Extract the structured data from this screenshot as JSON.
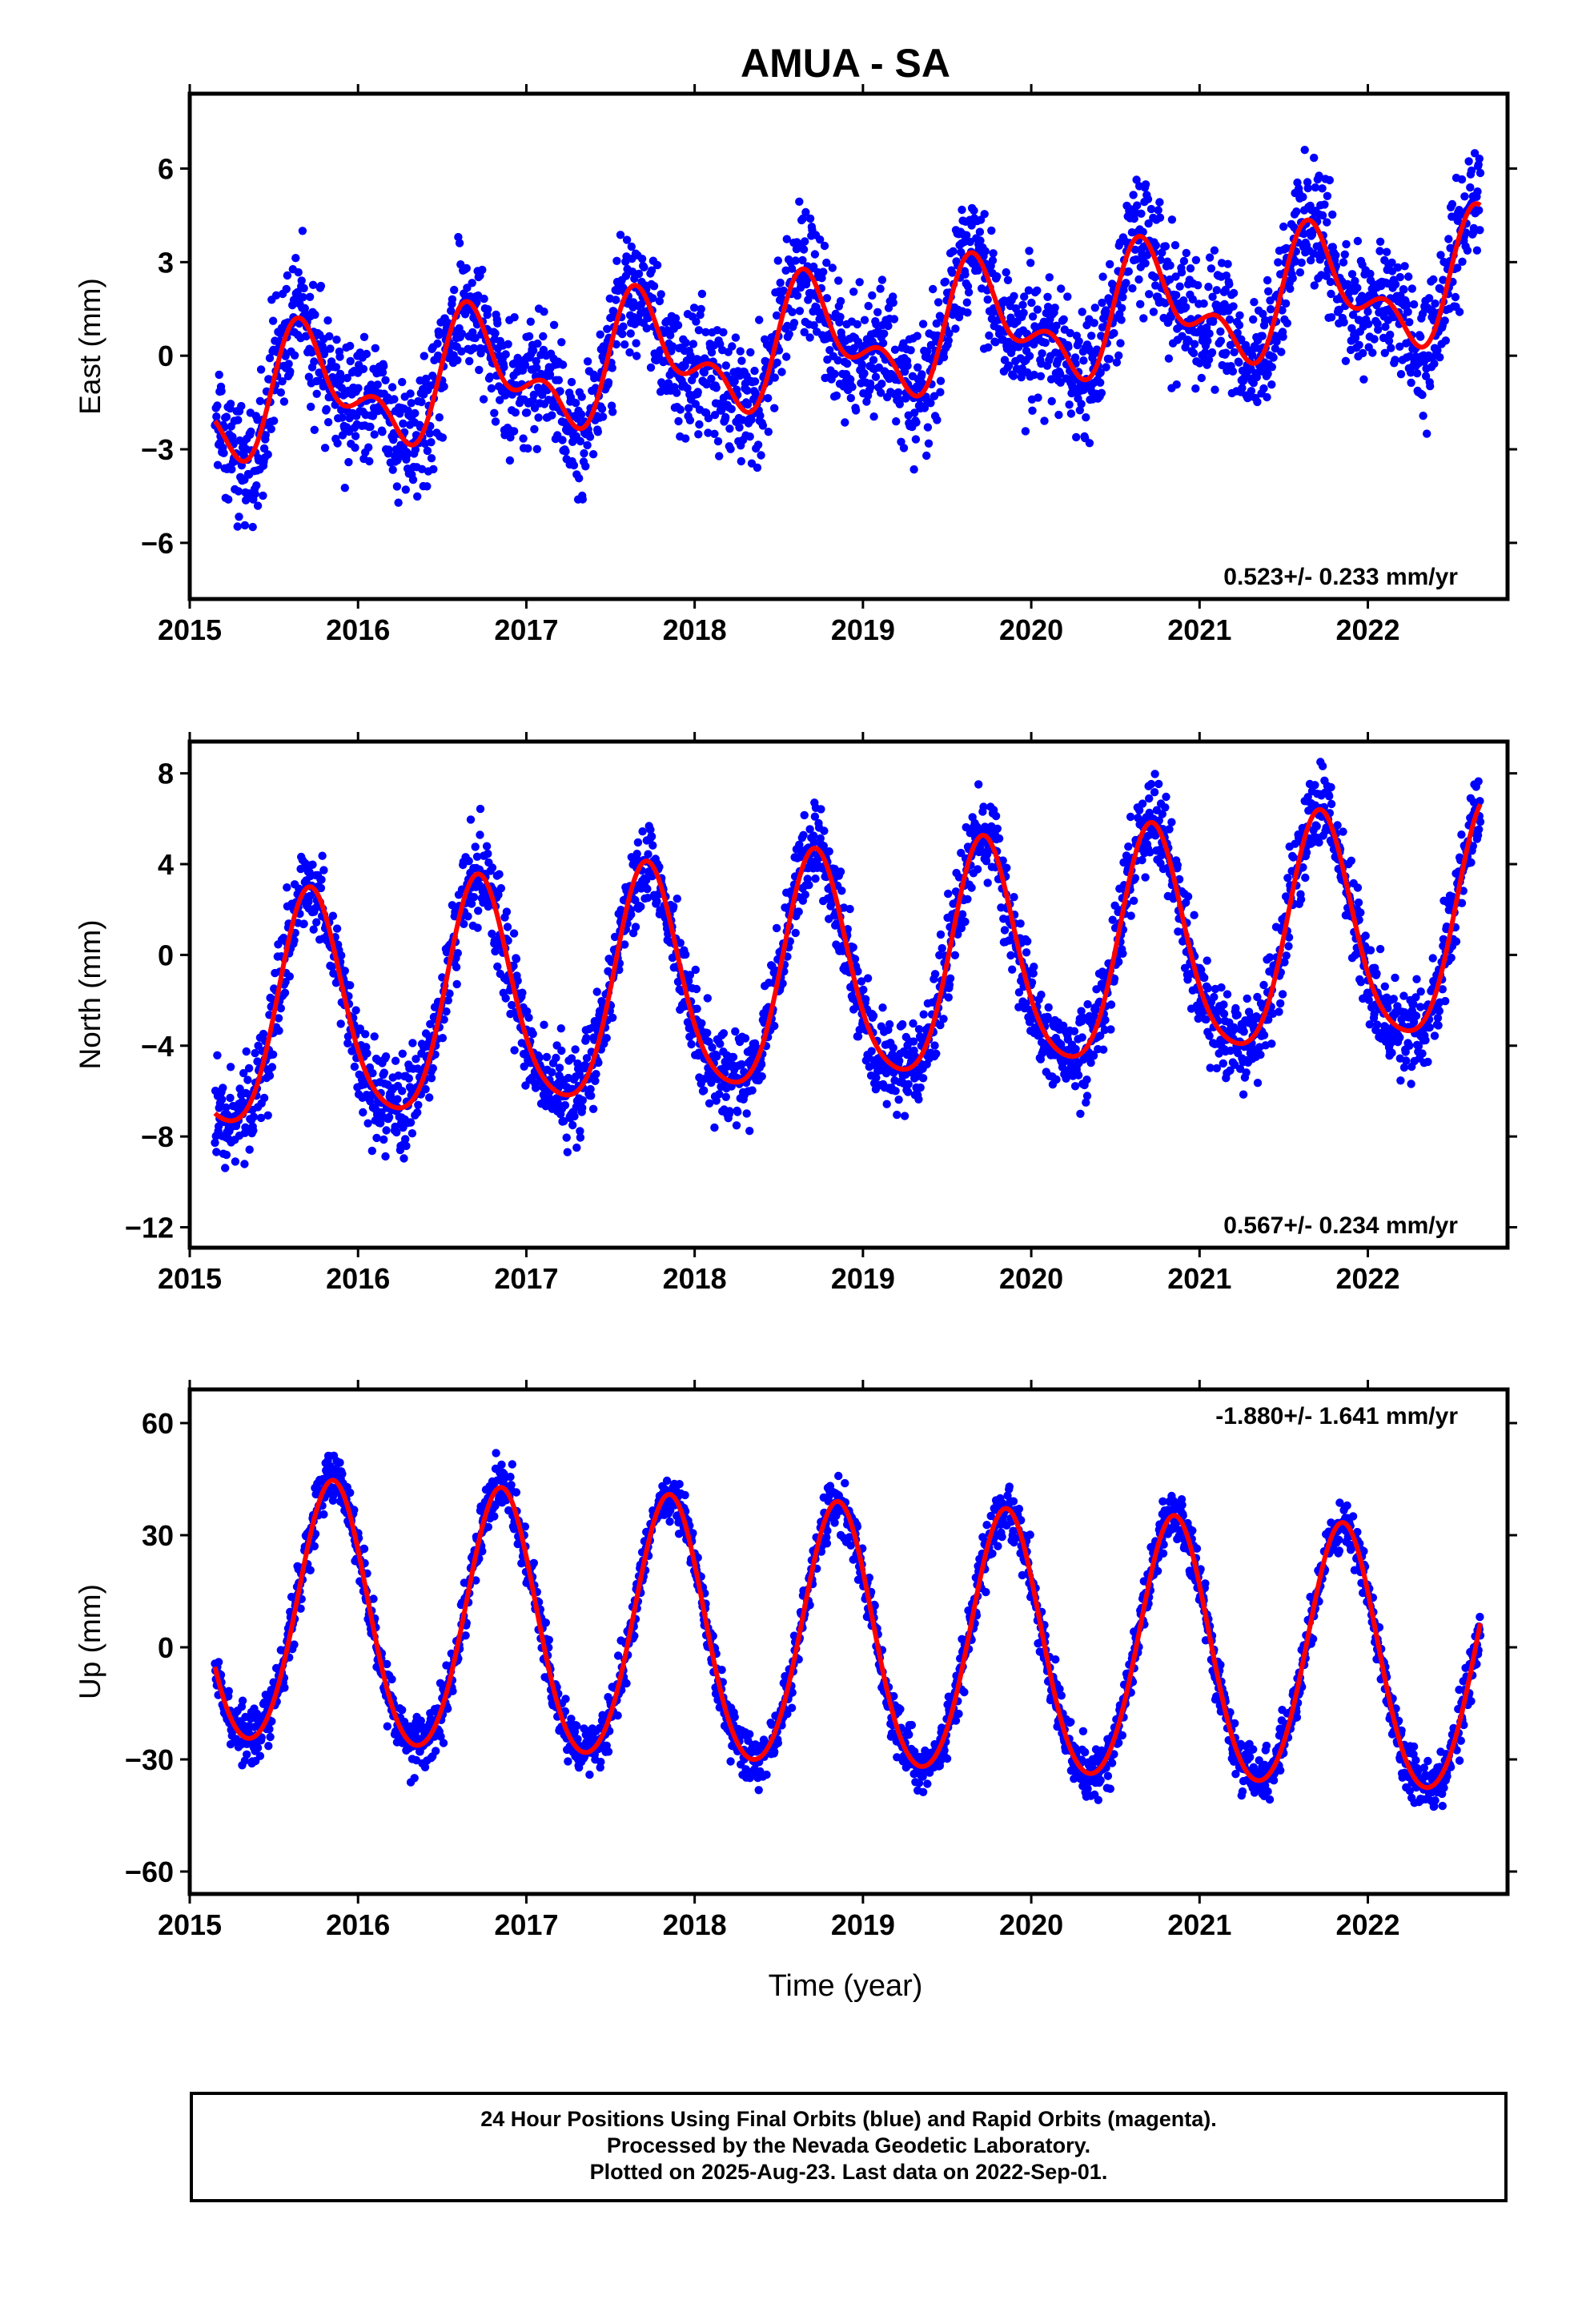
{
  "title": "AMUA - SA",
  "xlabel": "Time (year)",
  "colors": {
    "final_orbits": "#0000ff",
    "model_fit": "#ff0000",
    "frame": "#000000"
  },
  "footer": {
    "line1": "24 Hour Positions Using Final Orbits (blue) and Rapid Orbits (magenta).",
    "line2": "Processed by the Nevada Geodetic Laboratory.",
    "line3": "Plotted on 2025-Aug-23. Last data on 2022-Sep-01."
  },
  "chart_data": [
    {
      "type": "scatter",
      "component": "east",
      "ylabel": "East (mm)",
      "rate_label": "0.523+/- 0.233 mm/yr",
      "xlim": [
        2015.0,
        2022.83
      ],
      "ylim": [
        -7.8,
        8.4
      ],
      "xticks": [
        2015,
        2016,
        2017,
        2018,
        2019,
        2020,
        2021,
        2022
      ],
      "yticks": [
        -6,
        -3,
        0,
        3,
        6
      ],
      "yticklabels": [
        "−6",
        "−3",
        "0",
        "3",
        "6"
      ],
      "data_range": [
        2015.15,
        2022.67
      ],
      "model": {
        "rate": 0.523,
        "offset": -1.5,
        "t0": 2015.15,
        "annual_amp": 1.6,
        "annual_peak": 2015.7,
        "semiannual_amp": 1.0,
        "semiannual_peak": 2015.62
      },
      "scatter_sigma": 1.3,
      "series": [
        {
          "name": "Final Orbits",
          "color": "#0000ff",
          "marker": "point"
        },
        {
          "name": "Model",
          "color": "#ff0000",
          "marker": "line"
        }
      ]
    },
    {
      "type": "scatter",
      "component": "north",
      "ylabel": "North (mm)",
      "rate_label": "0.567+/- 0.234 mm/yr",
      "xlim": [
        2015.0,
        2022.83
      ],
      "ylim": [
        -12.9,
        9.4
      ],
      "xticks": [
        2015,
        2016,
        2017,
        2018,
        2019,
        2020,
        2021,
        2022
      ],
      "yticks": [
        -12,
        -8,
        -4,
        0,
        4,
        8
      ],
      "yticklabels": [
        "−12",
        "−8",
        "−4",
        "0",
        "4",
        "8"
      ],
      "data_range": [
        2015.15,
        2022.67
      ],
      "model": {
        "rate": 0.567,
        "offset": -3.1,
        "t0": 2015.15,
        "annual_amp": 5.0,
        "annual_peak": 2015.72,
        "semiannual_amp": 0.8,
        "semiannual_peak": 2015.7
      },
      "scatter_sigma": 1.3,
      "series": [
        {
          "name": "Final Orbits",
          "color": "#0000ff",
          "marker": "point"
        },
        {
          "name": "Model",
          "color": "#ff0000",
          "marker": "line"
        }
      ]
    },
    {
      "type": "scatter",
      "component": "up",
      "ylabel": "Up (mm)",
      "rate_label": "-1.880+/- 1.641 mm/yr",
      "xlim": [
        2015.0,
        2022.83
      ],
      "ylim": [
        -66,
        69
      ],
      "xticks": [
        2015,
        2016,
        2017,
        2018,
        2019,
        2020,
        2021,
        2022
      ],
      "yticks": [
        -60,
        -30,
        0,
        30,
        60
      ],
      "yticklabels": [
        "−60",
        "−30",
        "0",
        "30",
        "60"
      ],
      "data_range": [
        2015.15,
        2022.67
      ],
      "model": {
        "rate": -1.88,
        "offset": 8.0,
        "t0": 2015.15,
        "annual_amp": 35.0,
        "annual_peak": 2015.85,
        "semiannual_amp": 3.0,
        "semiannual_peak": 2015.85
      },
      "scatter_sigma": 4.5,
      "series": [
        {
          "name": "Final Orbits",
          "color": "#0000ff",
          "marker": "point"
        },
        {
          "name": "Model",
          "color": "#ff0000",
          "marker": "line"
        }
      ]
    }
  ]
}
